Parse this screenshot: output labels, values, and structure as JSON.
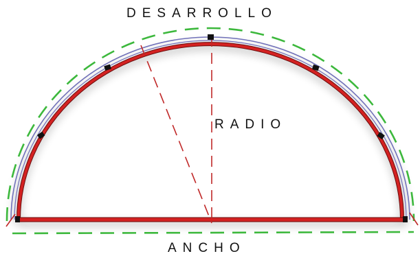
{
  "labels": {
    "desarrollo": "DESARROLLO",
    "radio": "RADIO",
    "ancho": "ANCHO"
  },
  "colors": {
    "arch_red": "#d42020",
    "arch_dark": "#6a0c0c",
    "inner_blue": "#7070b8",
    "outline_green": "#3cb83c",
    "dash_red": "#c02828",
    "tick_black": "#111111",
    "text": "#111111"
  },
  "legend_markers": {
    "arc_segment_ticks": 6
  }
}
